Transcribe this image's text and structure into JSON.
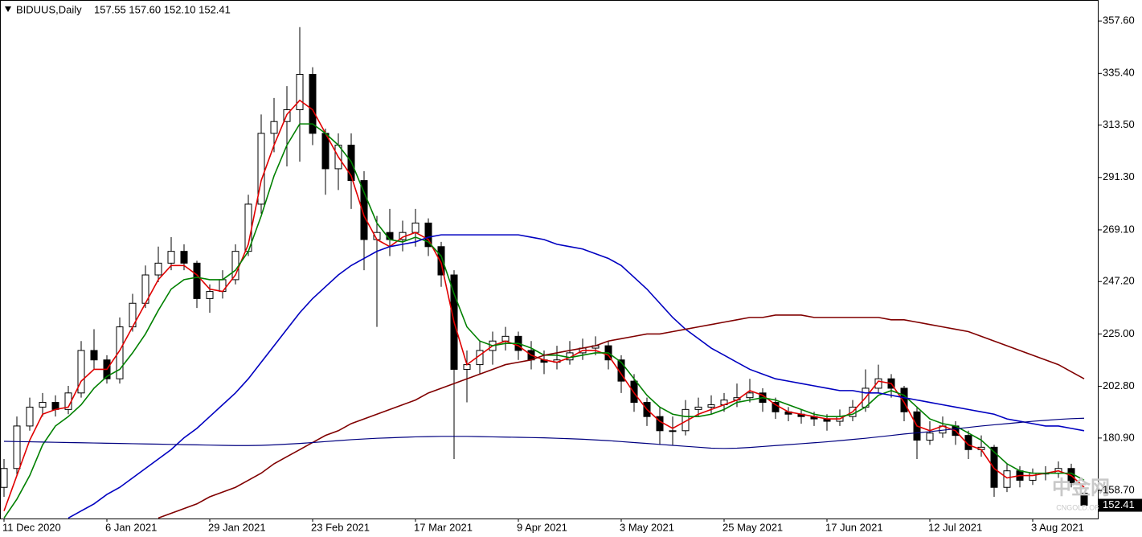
{
  "chart_data": {
    "type": "candlestick",
    "symbol": "BIDUUS,Daily",
    "quote": "157.55 157.60 152.10 152.41",
    "last_price": {
      "value": 152.41,
      "label": "152.41"
    },
    "watermark": "中金网",
    "watermark_sub": "CNGOLD.ORG",
    "categories": [
      "11 Dec 2020",
      null,
      null,
      null,
      null,
      null,
      null,
      null,
      "6 Jan 2021",
      null,
      null,
      null,
      null,
      null,
      null,
      null,
      "29 Jan 2021",
      null,
      null,
      null,
      null,
      null,
      null,
      null,
      "23 Feb 2021",
      null,
      null,
      null,
      null,
      null,
      null,
      null,
      "17 Mar 2021",
      null,
      null,
      null,
      null,
      null,
      null,
      null,
      "9 Apr 2021",
      null,
      null,
      null,
      null,
      null,
      null,
      null,
      "3 May 2021",
      null,
      null,
      null,
      null,
      null,
      null,
      null,
      "25 May 2021",
      null,
      null,
      null,
      null,
      null,
      null,
      null,
      "17 Jun 2021",
      null,
      null,
      null,
      null,
      null,
      null,
      null,
      "12 Jul 2021",
      null,
      null,
      null,
      null,
      null,
      null,
      null,
      "3 Aug 2021",
      null,
      null,
      null,
      null
    ],
    "candles": [
      [
        160,
        172,
        156,
        168
      ],
      [
        168,
        190,
        165,
        186
      ],
      [
        186,
        198,
        184,
        194
      ],
      [
        194,
        200,
        190,
        196
      ],
      [
        196,
        199,
        190,
        193
      ],
      [
        193,
        203,
        191,
        200
      ],
      [
        200,
        222,
        198,
        218
      ],
      [
        218,
        227,
        210,
        214
      ],
      [
        214,
        216,
        204,
        206
      ],
      [
        206,
        232,
        204,
        228
      ],
      [
        228,
        242,
        226,
        238
      ],
      [
        238,
        254,
        236,
        250
      ],
      [
        250,
        262,
        247,
        255
      ],
      [
        255,
        266,
        252,
        260
      ],
      [
        260,
        263,
        252,
        255
      ],
      [
        255,
        256,
        236,
        240
      ],
      [
        240,
        246,
        234,
        243
      ],
      [
        243,
        252,
        240,
        248
      ],
      [
        248,
        263,
        246,
        260
      ],
      [
        260,
        284,
        258,
        280
      ],
      [
        280,
        318,
        276,
        310
      ],
      [
        310,
        325,
        302,
        315
      ],
      [
        315,
        330,
        296,
        320
      ],
      [
        320,
        355,
        298,
        335
      ],
      [
        335,
        338,
        305,
        310
      ],
      [
        310,
        312,
        284,
        295
      ],
      [
        295,
        310,
        286,
        305
      ],
      [
        305,
        310,
        278,
        290
      ],
      [
        290,
        294,
        252,
        265
      ],
      [
        265,
        275,
        228,
        268
      ],
      [
        268,
        278,
        258,
        265
      ],
      [
        265,
        273,
        260,
        268
      ],
      [
        268,
        278,
        262,
        272
      ],
      [
        272,
        274,
        258,
        262
      ],
      [
        262,
        264,
        245,
        250
      ],
      [
        250,
        252,
        172,
        210
      ],
      [
        210,
        218,
        196,
        212
      ],
      [
        212,
        222,
        208,
        218
      ],
      [
        218,
        226,
        212,
        222
      ],
      [
        222,
        228,
        218,
        224
      ],
      [
        224,
        226,
        214,
        218
      ],
      [
        218,
        222,
        210,
        214
      ],
      [
        214,
        218,
        208,
        213
      ],
      [
        213,
        220,
        210,
        214
      ],
      [
        214,
        222,
        212,
        217
      ],
      [
        217,
        223,
        214,
        219
      ],
      [
        219,
        224,
        216,
        220
      ],
      [
        220,
        222,
        210,
        214
      ],
      [
        214,
        216,
        200,
        205
      ],
      [
        205,
        208,
        192,
        196
      ],
      [
        196,
        198,
        186,
        190
      ],
      [
        190,
        194,
        178,
        184
      ],
      [
        184,
        190,
        178,
        184
      ],
      [
        184,
        197,
        182,
        193
      ],
      [
        193,
        198,
        190,
        194
      ],
      [
        194,
        199,
        191,
        195
      ],
      [
        195,
        200,
        192,
        197
      ],
      [
        197,
        204,
        194,
        198
      ],
      [
        198,
        206,
        196,
        200
      ],
      [
        200,
        202,
        192,
        196
      ],
      [
        196,
        198,
        189,
        192
      ],
      [
        192,
        194,
        188,
        191
      ],
      [
        191,
        193,
        187,
        190
      ],
      [
        190,
        192,
        186,
        189
      ],
      [
        189,
        191,
        184,
        188
      ],
      [
        188,
        193,
        186,
        190
      ],
      [
        190,
        197,
        188,
        194
      ],
      [
        194,
        210,
        192,
        202
      ],
      [
        202,
        212,
        200,
        206
      ],
      [
        206,
        208,
        198,
        202
      ],
      [
        202,
        203,
        188,
        192
      ],
      [
        192,
        194,
        172,
        180
      ],
      [
        180,
        188,
        178,
        183
      ],
      [
        183,
        190,
        181,
        186
      ],
      [
        186,
        188,
        178,
        182
      ],
      [
        182,
        184,
        172,
        176
      ],
      [
        176,
        182,
        173,
        177
      ],
      [
        177,
        178,
        156,
        160
      ],
      [
        160,
        170,
        158,
        167
      ],
      [
        167,
        169,
        160,
        163
      ],
      [
        163,
        168,
        161,
        166
      ],
      [
        166,
        169,
        163,
        166
      ],
      [
        166,
        171,
        164,
        168
      ],
      [
        168,
        170,
        160,
        162
      ],
      [
        157.55,
        157.6,
        152.1,
        152.41
      ]
    ],
    "bull_color": "#ffffff",
    "bear_color": "#000000",
    "lines": [
      {
        "color": "#e00000",
        "width": 1.6,
        "values": [
          150,
          165,
          180,
          191,
          193,
          194,
          205,
          210,
          210,
          218,
          228,
          238,
          248,
          254,
          254,
          250,
          244,
          243,
          250,
          263,
          290,
          305,
          318,
          324,
          320,
          310,
          300,
          292,
          275,
          265,
          262,
          266,
          268,
          265,
          255,
          230,
          212,
          216,
          220,
          222,
          220,
          216,
          214,
          213,
          215,
          218,
          218,
          216,
          208,
          200,
          193,
          188,
          185,
          188,
          191,
          193,
          195,
          197,
          201,
          199,
          195,
          192,
          191,
          190,
          189,
          189,
          192,
          198,
          205,
          204,
          196,
          186,
          184,
          186,
          184,
          178,
          176,
          168,
          164,
          165,
          165,
          166,
          167,
          165,
          160
        ]
      },
      {
        "color": "#008000",
        "width": 1.6,
        "values": [
          147,
          155,
          165,
          178,
          186,
          190,
          195,
          202,
          207,
          210,
          217,
          225,
          235,
          244,
          248,
          249,
          248,
          248,
          252,
          260,
          275,
          292,
          305,
          314,
          314,
          310,
          305,
          298,
          285,
          272,
          265,
          264,
          266,
          264,
          258,
          242,
          228,
          222,
          220,
          221,
          221,
          219,
          216,
          216,
          215,
          216,
          217,
          217,
          213,
          206,
          199,
          194,
          191,
          190,
          190,
          191,
          193,
          196,
          197,
          198,
          197,
          195,
          193,
          191,
          190,
          190,
          191,
          194,
          199,
          201,
          199,
          194,
          189,
          187,
          186,
          183,
          180,
          175,
          170,
          167,
          166,
          166,
          166,
          166,
          163
        ]
      },
      {
        "color": "#0000c0",
        "width": 1.6,
        "values": [
          null,
          null,
          null,
          null,
          null,
          147,
          150,
          153,
          157,
          160,
          164,
          168,
          172,
          176,
          181,
          185,
          190,
          195,
          200,
          206,
          213,
          220,
          227,
          234,
          240,
          245,
          250,
          254,
          257,
          260,
          262,
          263,
          264,
          266,
          267,
          267,
          267,
          267,
          267,
          267,
          267,
          266,
          265,
          263,
          262,
          261,
          259,
          257,
          254,
          249,
          244,
          238,
          232,
          227,
          223,
          219,
          216,
          213,
          210,
          208,
          206,
          205,
          204,
          203,
          202,
          201,
          201,
          200,
          200,
          199,
          198,
          197,
          196,
          195,
          194,
          193,
          192,
          191,
          189,
          188,
          187,
          186,
          186,
          185,
          184
        ]
      },
      {
        "color": "#800000",
        "width": 1.6,
        "values": [
          null,
          null,
          null,
          null,
          null,
          null,
          null,
          null,
          null,
          null,
          null,
          null,
          147,
          149,
          151,
          153,
          156,
          158,
          160,
          163,
          166,
          170,
          173,
          176,
          179,
          182,
          184,
          187,
          189,
          191,
          193,
          195,
          197,
          200,
          202,
          204,
          206,
          208,
          210,
          212,
          213,
          214,
          216,
          217,
          218,
          219,
          220,
          222,
          223,
          224,
          225,
          225,
          226,
          227,
          228,
          229,
          230,
          231,
          232,
          232,
          233,
          233,
          233,
          232,
          232,
          232,
          232,
          232,
          232,
          231,
          231,
          230,
          229,
          228,
          227,
          226,
          224,
          222,
          220,
          218,
          216,
          214,
          212,
          209,
          206
        ]
      },
      {
        "color": "#000080",
        "width": 1.2,
        "values": [
          179.5,
          179.4,
          179.3,
          179.2,
          179.1,
          179,
          178.9,
          178.8,
          178.7,
          178.6,
          178.5,
          178.4,
          178.3,
          178.2,
          178.1,
          178,
          177.9,
          177.8,
          177.7,
          177.7,
          177.8,
          178,
          178.3,
          178.6,
          179,
          179.4,
          179.8,
          180.2,
          180.5,
          180.8,
          181,
          181.2,
          181.4,
          181.5,
          181.6,
          181.6,
          181.6,
          181.5,
          181.4,
          181.3,
          181.2,
          181.1,
          181,
          180.8,
          180.6,
          180.4,
          180.1,
          179.8,
          179.4,
          179,
          178.6,
          178.2,
          177.8,
          177.4,
          177,
          176.6,
          176.5,
          176.6,
          176.9,
          177.3,
          177.7,
          178.1,
          178.5,
          178.9,
          179.3,
          179.8,
          180.3,
          180.8,
          181.4,
          182,
          182.6,
          183.1,
          183.6,
          184.2,
          184.8,
          185.4,
          186,
          186.5,
          187,
          187.5,
          188,
          188.4,
          188.8,
          189.1,
          189.3
        ]
      }
    ],
    "ylim": [
      146.8,
      366.5
    ],
    "yticks": [
      {
        "value": 158.7,
        "label": "158.70"
      },
      {
        "value": 180.9,
        "label": "180.90"
      },
      {
        "value": 202.8,
        "label": "202.80"
      },
      {
        "value": 225,
        "label": "225.00"
      },
      {
        "value": 247.2,
        "label": "247.20"
      },
      {
        "value": 269.1,
        "label": "269.10"
      },
      {
        "value": 291.3,
        "label": "291.30"
      },
      {
        "value": 313.5,
        "label": "313.50"
      },
      {
        "value": 335.4,
        "label": "335.40"
      },
      {
        "value": 357.6,
        "label": "357.60"
      }
    ]
  }
}
